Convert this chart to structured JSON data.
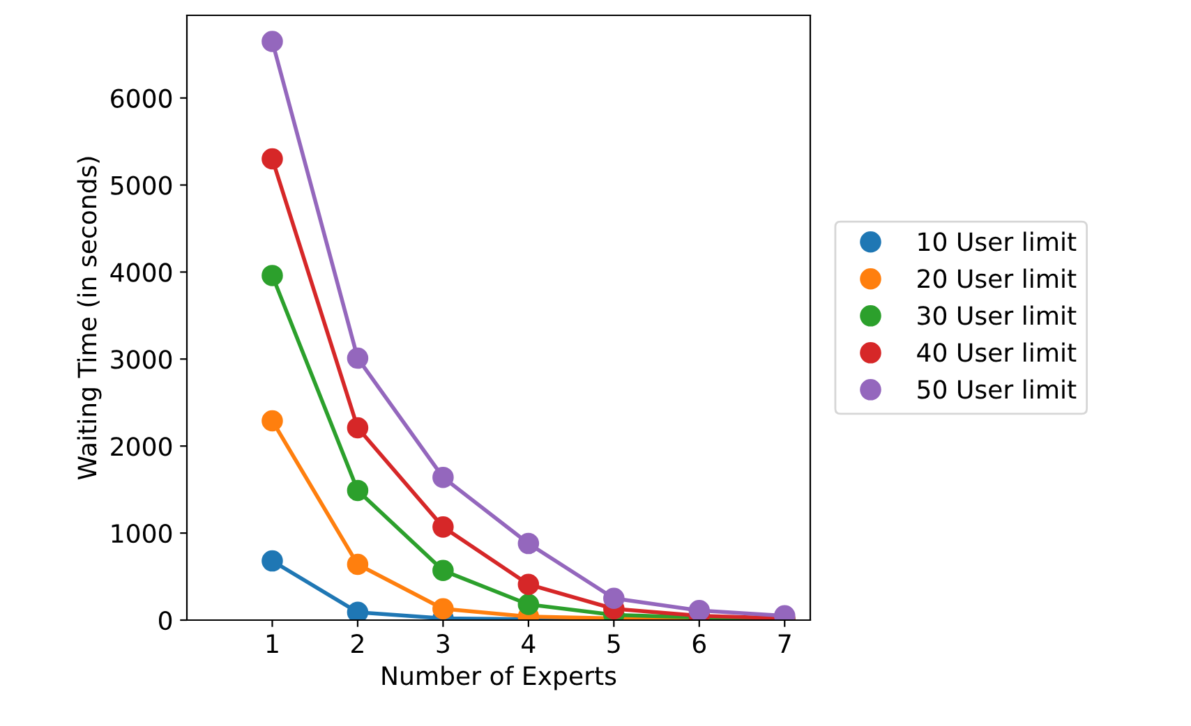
{
  "chart_data": {
    "type": "line",
    "xlabel": "Number of Experts",
    "ylabel": "Waiting Time (in seconds)",
    "x": [
      1,
      2,
      3,
      4,
      5,
      6,
      7
    ],
    "xlim": [
      0,
      7.3
    ],
    "xticks": [
      1,
      2,
      3,
      4,
      5,
      6,
      7
    ],
    "ylim": [
      0,
      6950
    ],
    "yticks": [
      0,
      1000,
      2000,
      3000,
      4000,
      5000,
      6000
    ],
    "marker": "circle",
    "line_style": "solid",
    "grid": false,
    "legend": "right",
    "series": [
      {
        "name": "10 User limit",
        "color": "#1f77b4",
        "values": [
          680,
          90,
          20,
          10,
          0,
          null,
          null
        ]
      },
      {
        "name": "20 User limit",
        "color": "#ff7f0e",
        "values": [
          2290,
          640,
          130,
          40,
          20,
          10,
          0
        ]
      },
      {
        "name": "30 User limit",
        "color": "#2ca02c",
        "values": [
          3960,
          1490,
          570,
          180,
          60,
          30,
          10
        ]
      },
      {
        "name": "40 User limit",
        "color": "#d62728",
        "values": [
          5300,
          2210,
          1070,
          410,
          130,
          50,
          20
        ]
      },
      {
        "name": "50 User limit",
        "color": "#9467bd",
        "values": [
          6650,
          3010,
          1640,
          880,
          250,
          110,
          50
        ]
      }
    ]
  }
}
